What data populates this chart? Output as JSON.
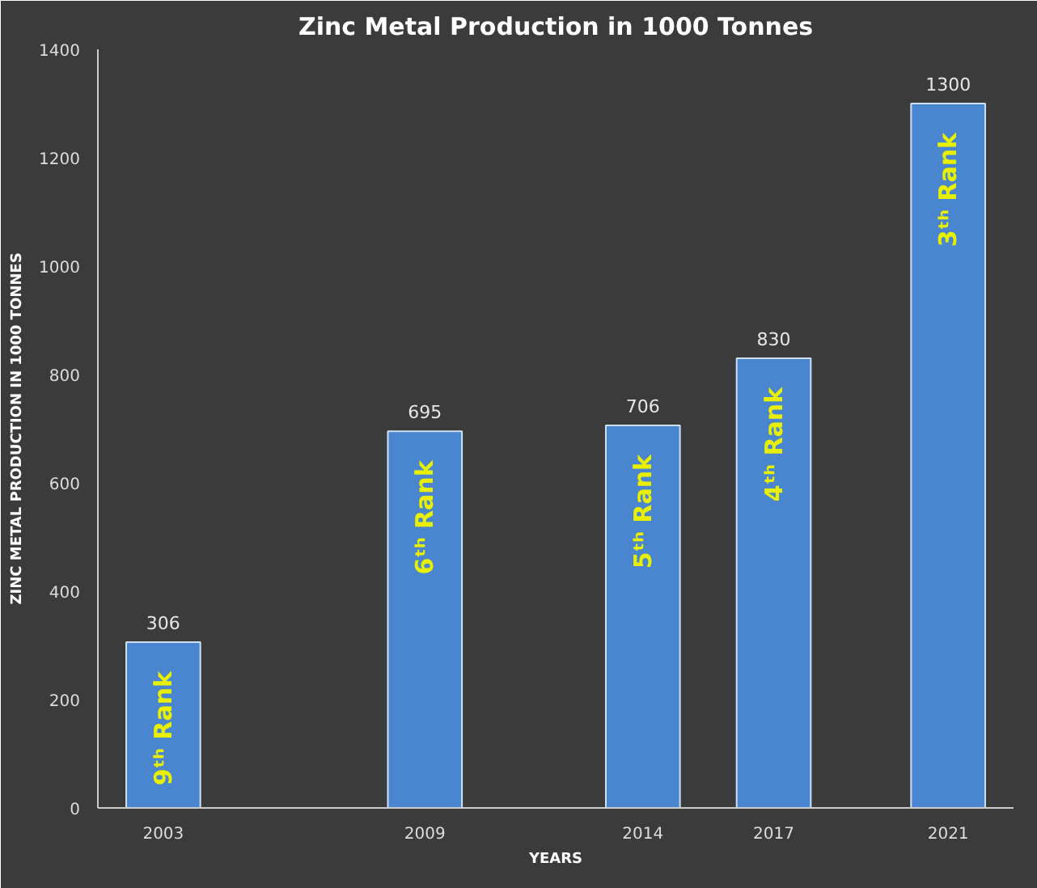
{
  "chart_data": {
    "type": "bar",
    "title": "Zinc Metal Production in 1000 Tonnes",
    "xlabel": "YEARS",
    "ylabel": "ZINC METAL PRODUCTION IN 1000 TONNES",
    "x": [
      2003,
      2009,
      2014,
      2017,
      2021
    ],
    "values": [
      306,
      695,
      706,
      830,
      1300
    ],
    "color": "#4a86d0",
    "xlim": [
      2001.5,
      2022.5
    ],
    "xticks": [
      2003,
      2009,
      2014,
      2017,
      2021
    ],
    "ylim": [
      0,
      1400
    ],
    "yticks": [
      0,
      200,
      400,
      600,
      800,
      1000,
      1200,
      1400
    ],
    "grid": false,
    "data_labels": true,
    "annotations": [
      "9ᵗʰ Rank",
      "6ᵗʰ Rank",
      "5ᵗʰ Rank",
      "4ᵗʰ Rank",
      "3ᵗʰ Rank"
    ]
  }
}
